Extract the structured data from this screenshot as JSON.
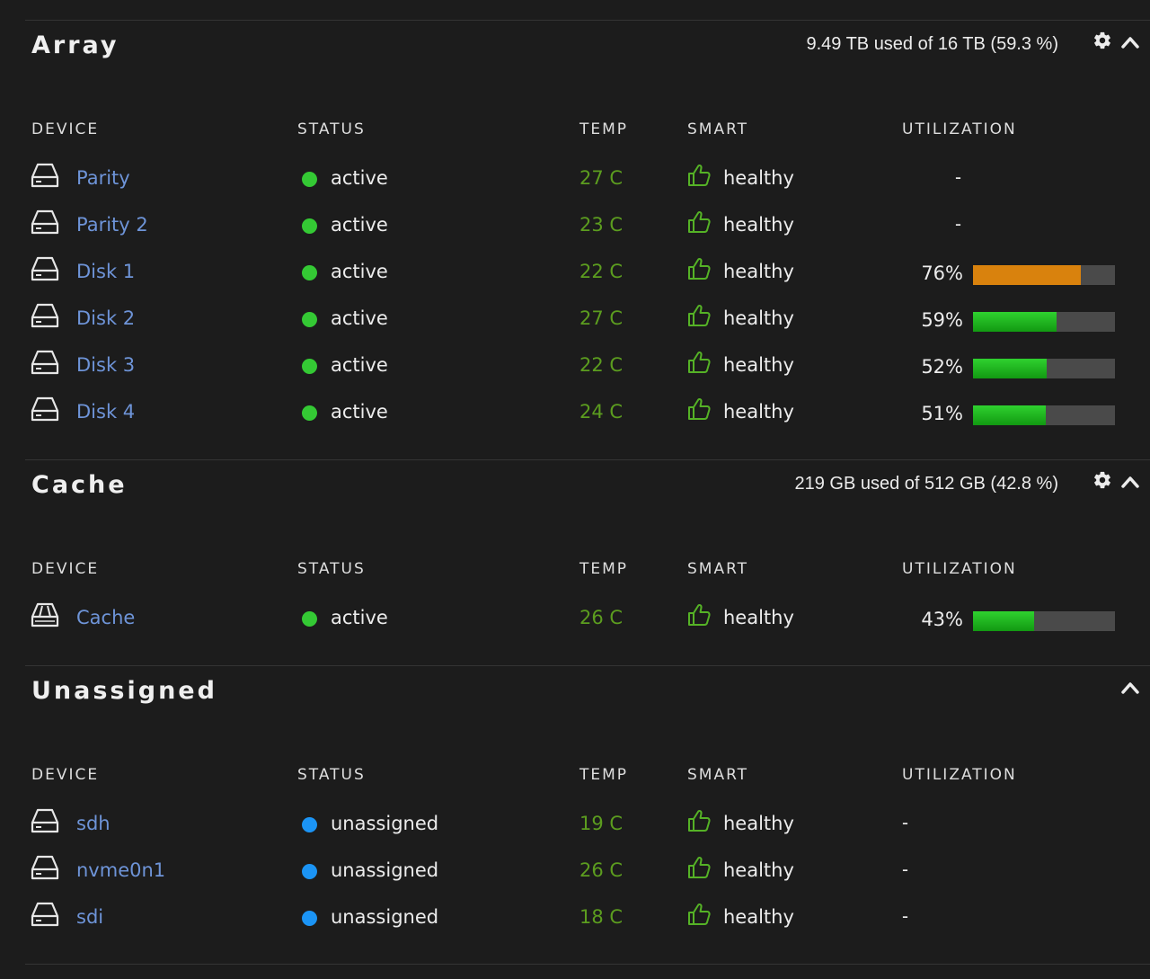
{
  "colors": {
    "active_dot": "#34c934",
    "unassigned_dot": "#1b94f5",
    "temp": "#5c9d1f",
    "thumb": "#55b226",
    "link": "#6e94d8",
    "bar_green": "#1fbd1f",
    "bar_orange": "#d9820d",
    "bar_track": "#4a4a4a"
  },
  "columns": {
    "device": "DEVICE",
    "status": "STATUS",
    "temp": "TEMP",
    "smart": "SMART",
    "utilization": "UTILIZATION"
  },
  "array": {
    "title": "Array",
    "usage": "9.49 TB used of 16 TB (59.3 %)",
    "settings_icon": "gear-icon",
    "collapse_icon": "chevron-up-icon",
    "rows": [
      {
        "name": "Parity",
        "icon": "hdd-icon",
        "status": "active",
        "temp": "27 C",
        "smart": "healthy",
        "utilization": "-"
      },
      {
        "name": "Parity 2",
        "icon": "hdd-icon",
        "status": "active",
        "temp": "23 C",
        "smart": "healthy",
        "utilization": "-"
      },
      {
        "name": "Disk 1",
        "icon": "hdd-icon",
        "status": "active",
        "temp": "22 C",
        "smart": "healthy",
        "utilization": "76%",
        "util_value": 0.76,
        "util_color": "orange"
      },
      {
        "name": "Disk 2",
        "icon": "hdd-icon",
        "status": "active",
        "temp": "27 C",
        "smart": "healthy",
        "utilization": "59%",
        "util_value": 0.59,
        "util_color": "green"
      },
      {
        "name": "Disk 3",
        "icon": "hdd-icon",
        "status": "active",
        "temp": "22 C",
        "smart": "healthy",
        "utilization": "52%",
        "util_value": 0.52,
        "util_color": "green"
      },
      {
        "name": "Disk 4",
        "icon": "hdd-icon",
        "status": "active",
        "temp": "24 C",
        "smart": "healthy",
        "utilization": "51%",
        "util_value": 0.51,
        "util_color": "green"
      }
    ]
  },
  "cache": {
    "title": "Cache",
    "usage": "219 GB used of 512 GB (42.8 %)",
    "settings_icon": "gear-icon",
    "collapse_icon": "chevron-up-icon",
    "rows": [
      {
        "name": "Cache",
        "icon": "ssd-icon",
        "status": "active",
        "temp": "26 C",
        "smart": "healthy",
        "utilization": "43%",
        "util_value": 0.43,
        "util_color": "green"
      }
    ]
  },
  "unassigned": {
    "title": "Unassigned",
    "collapse_icon": "chevron-up-icon",
    "rows": [
      {
        "name": "sdh",
        "icon": "hdd-icon",
        "status": "unassigned",
        "temp": "19 C",
        "smart": "healthy",
        "utilization": "-"
      },
      {
        "name": "nvme0n1",
        "icon": "hdd-icon",
        "status": "unassigned",
        "temp": "26 C",
        "smart": "healthy",
        "utilization": "-"
      },
      {
        "name": "sdi",
        "icon": "hdd-icon",
        "status": "unassigned",
        "temp": "18 C",
        "smart": "healthy",
        "utilization": "-"
      }
    ]
  }
}
